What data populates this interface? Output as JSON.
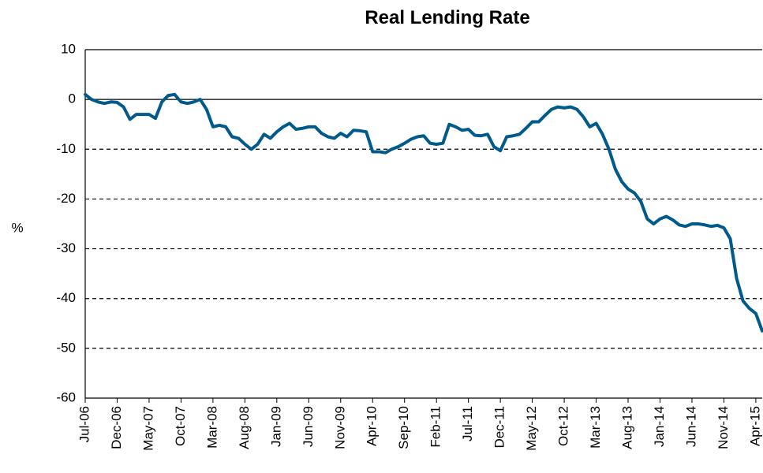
{
  "chart_data": {
    "type": "line",
    "title": "Real Lending Rate",
    "y_label": "%",
    "categories": [
      "Jul-06",
      null,
      null,
      null,
      null,
      "Dec-06",
      null,
      null,
      null,
      null,
      "May-07",
      null,
      null,
      null,
      null,
      "Oct-07",
      null,
      null,
      null,
      null,
      "Mar-08",
      null,
      null,
      null,
      null,
      "Aug-08",
      null,
      null,
      null,
      null,
      "Jan-09",
      null,
      null,
      null,
      null,
      "Jun-09",
      null,
      null,
      null,
      null,
      "Nov-09",
      null,
      null,
      null,
      null,
      "Apr-10",
      null,
      null,
      null,
      null,
      "Sep-10",
      null,
      null,
      null,
      null,
      "Feb-11",
      null,
      null,
      null,
      null,
      "Jul-11",
      null,
      null,
      null,
      null,
      "Dec-11",
      null,
      null,
      null,
      null,
      "May-12",
      null,
      null,
      null,
      null,
      "Oct-12",
      null,
      null,
      null,
      null,
      "Mar-13",
      null,
      null,
      null,
      null,
      "Aug-13",
      null,
      null,
      null,
      null,
      "Jan-14",
      null,
      null,
      null,
      null,
      "Jun-14",
      null,
      null,
      null,
      null,
      "Nov-14",
      null,
      null,
      null,
      null,
      "Apr-15",
      null
    ],
    "values": [
      1,
      0,
      -0.5,
      -0.8,
      -0.5,
      -0.6,
      -1.5,
      -4,
      -3,
      -3,
      -3,
      -3.8,
      -0.5,
      0.8,
      1,
      -0.5,
      -0.8,
      -0.5,
      0,
      -2,
      -5.5,
      -5.2,
      -5.5,
      -7.5,
      -7.8,
      -9,
      -10,
      -9,
      -7,
      -7.8,
      -6.5,
      -5.5,
      -4.8,
      -6,
      -5.8,
      -5.5,
      -5.5,
      -6.8,
      -7.5,
      -7.8,
      -6.8,
      -7.5,
      -6.2,
      -6.3,
      -6.5,
      -10.5,
      -10.5,
      -10.7,
      -10,
      -9.5,
      -8.8,
      -8,
      -7.5,
      -7.3,
      -8.8,
      -9,
      -8.8,
      -5,
      -5.5,
      -6.2,
      -6,
      -7.2,
      -7.3,
      -7,
      -9.5,
      -10.3,
      -7.5,
      -7.3,
      -7,
      -5.8,
      -4.5,
      -4.5,
      -3.2,
      -2,
      -1.5,
      -1.7,
      -1.5,
      -2,
      -3.5,
      -5.5,
      -4.8,
      -7,
      -10,
      -14,
      -16.5,
      -18,
      -18.8,
      -20.5,
      -24,
      -25,
      -24,
      -23.5,
      -24.2,
      -25.2,
      -25.5,
      -25,
      -25,
      -25.2,
      -25.5,
      -25.3,
      -25.8,
      -28,
      -36,
      -40.5,
      -42,
      -43,
      -46.5
    ],
    "color": "#005a8c",
    "ylim": [
      -60,
      10
    ],
    "yticks": [
      10,
      0,
      -10,
      -20,
      -30,
      -40,
      -50,
      -60
    ],
    "grid": true
  }
}
